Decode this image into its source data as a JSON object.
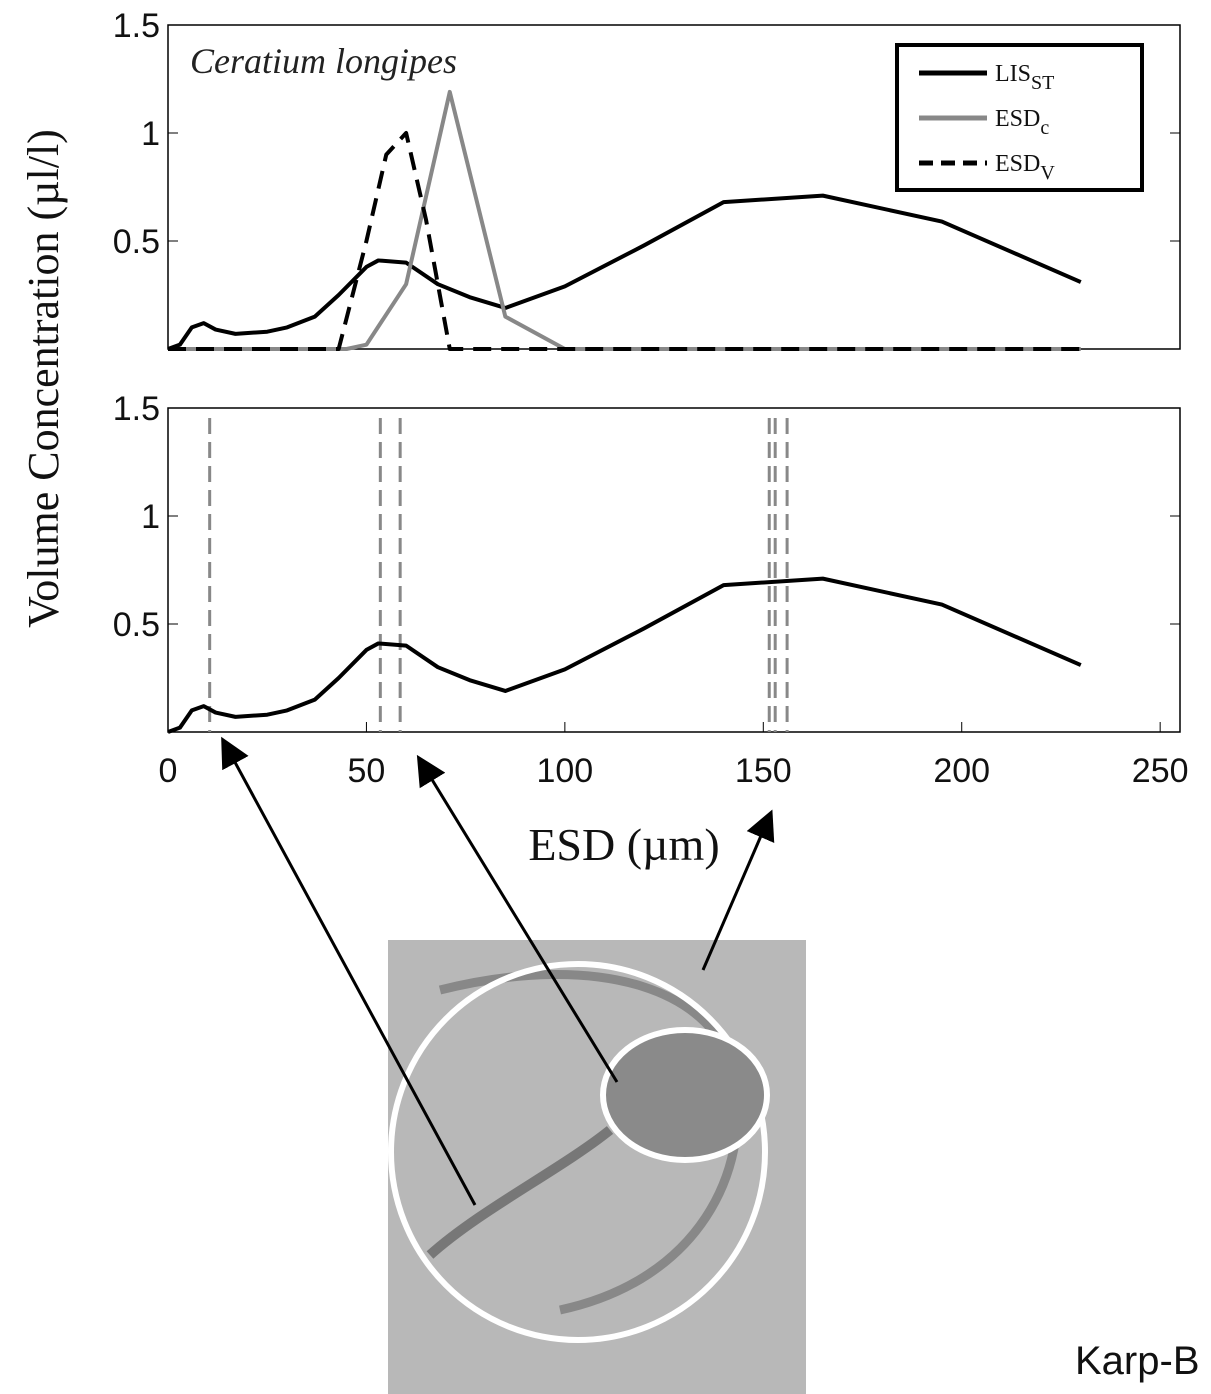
{
  "chart_data": [
    {
      "type": "line",
      "annotation": "Ceratium longipes",
      "xlim": [
        0,
        255
      ],
      "ylim": [
        0,
        1.5
      ],
      "yticks": [
        0.5,
        1,
        1.5
      ],
      "legend": "upper right",
      "series": [
        {
          "name": "LISST",
          "color": "#000000",
          "dash": "solid",
          "x": [
            0,
            3,
            6,
            9,
            12,
            17,
            25,
            30,
            37,
            43,
            50,
            53,
            60,
            68,
            76,
            85,
            100,
            120,
            140,
            165,
            195,
            230
          ],
          "values": [
            0,
            0.02,
            0.1,
            0.12,
            0.09,
            0.07,
            0.08,
            0.1,
            0.15,
            0.25,
            0.38,
            0.41,
            0.4,
            0.3,
            0.24,
            0.19,
            0.29,
            0.48,
            0.68,
            0.71,
            0.59,
            0.31
          ]
        },
        {
          "name": "ESDc",
          "color": "#888888",
          "dash": "solid",
          "x": [
            0,
            45,
            50,
            60,
            71,
            85,
            100,
            230
          ],
          "values": [
            0,
            0,
            0.02,
            0.3,
            1.19,
            0.15,
            0,
            0
          ]
        },
        {
          "name": "ESDV",
          "color": "#000000",
          "dash": "dashed",
          "x": [
            0,
            43,
            50,
            55,
            60,
            65,
            71,
            230
          ],
          "values": [
            0,
            0,
            0.5,
            0.9,
            1.0,
            0.6,
            0,
            0
          ]
        }
      ]
    },
    {
      "type": "line",
      "xlabel": "ESD  (µm)",
      "ylabel": "Volume Concentration (µl/l)",
      "xlim": [
        0,
        255
      ],
      "ylim": [
        0,
        1.5
      ],
      "xticks": [
        0,
        50,
        100,
        150,
        200,
        250
      ],
      "yticks": [
        0.5,
        1,
        1.5
      ],
      "vlines": {
        "color": "#888888",
        "x": [
          10.5,
          53.5,
          58.5,
          151.5,
          153,
          156
        ]
      },
      "series": [
        {
          "name": "LISST",
          "color": "#000000",
          "dash": "solid",
          "x": [
            0,
            3,
            6,
            9,
            12,
            17,
            25,
            30,
            37,
            43,
            50,
            53,
            60,
            68,
            76,
            85,
            100,
            120,
            140,
            165,
            195,
            230
          ],
          "values": [
            0,
            0.02,
            0.1,
            0.12,
            0.09,
            0.07,
            0.08,
            0.1,
            0.15,
            0.25,
            0.38,
            0.41,
            0.4,
            0.3,
            0.24,
            0.19,
            0.29,
            0.48,
            0.68,
            0.71,
            0.59,
            0.31
          ]
        }
      ]
    }
  ],
  "caption": "Karp-B"
}
